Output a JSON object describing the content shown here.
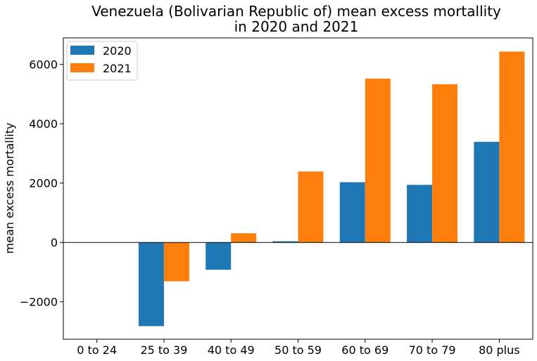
{
  "chart_data": {
    "type": "bar",
    "title": [
      "Venezuela (Bolivarian Republic of) mean excess mortallity",
      "in 2020 and 2021"
    ],
    "xlabel": "",
    "ylabel": "mean excess mortallity",
    "categories": [
      "0 to 24",
      "25 to 39",
      "40 to 49",
      "50 to 59",
      "60 to 69",
      "70 to 79",
      "80 plus"
    ],
    "series": [
      {
        "name": "2020",
        "color": "#1f77b4",
        "values": [
          0,
          -2820,
          -920,
          40,
          2030,
          1940,
          3390
        ]
      },
      {
        "name": "2021",
        "color": "#ff7f0e",
        "values": [
          0,
          -1310,
          310,
          2390,
          5520,
          5330,
          6430
        ]
      }
    ],
    "ylim": [
      -3260,
      6890
    ],
    "yticks": [
      -2000,
      0,
      2000,
      4000,
      6000
    ],
    "ytick_labels": [
      "−2000",
      "0",
      "2000",
      "4000",
      "6000"
    ],
    "zero_line": true,
    "grid": false,
    "legend_position": "top-left"
  }
}
